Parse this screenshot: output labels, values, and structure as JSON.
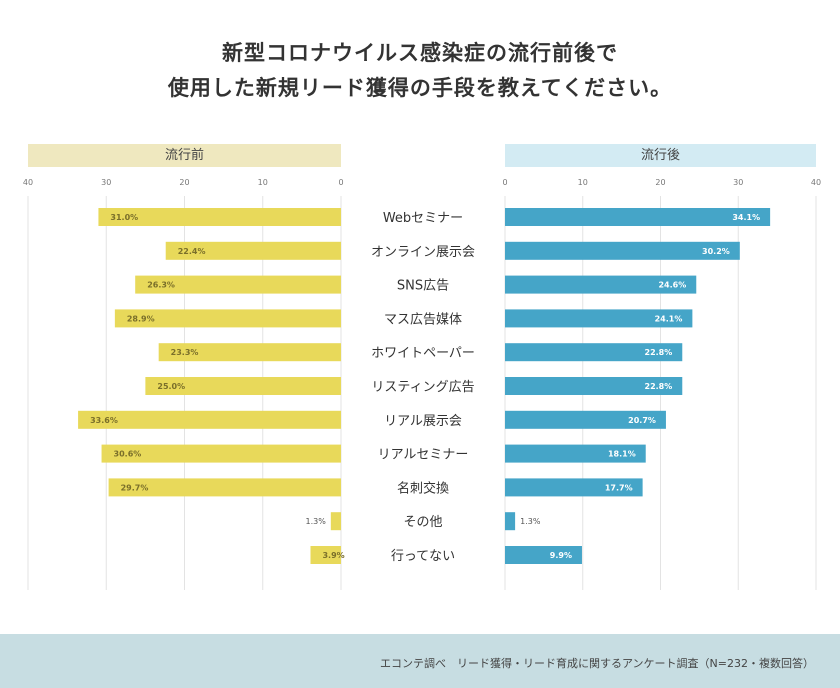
{
  "title_line1": "新型コロナウイルス感染症の流行前後で",
  "title_line2": "使用した新規リード獲得の手段を教えてください。",
  "colors": {
    "before": "#e8d95a",
    "after": "#45a5c8",
    "before_header": "#efe8bf",
    "after_header": "#d3ebf3",
    "footer": "#c7dde2"
  },
  "footer": {
    "source": "エコンテ調べ　リード獲得・リード育成に関するアンケート調査（N=232・複数回答）"
  },
  "chart_data": {
    "type": "bar",
    "categories": [
      "Webセミナー",
      "オンライン展示会",
      "SNS広告",
      "マス広告媒体",
      "ホワイトペーパー",
      "リスティング広告",
      "リアル展示会",
      "リアルセミナー",
      "名刺交換",
      "その他",
      "行ってない"
    ],
    "series": [
      {
        "name": "流行前",
        "values": [
          31.0,
          22.4,
          26.3,
          28.9,
          23.3,
          25.0,
          33.6,
          30.6,
          29.7,
          1.3,
          3.9
        ],
        "labels": [
          "31.0%",
          "22.4%",
          "26.3%",
          "28.9%",
          "23.3%",
          "25.0%",
          "33.6%",
          "30.6%",
          "29.7%",
          "1.3%",
          "3.9%"
        ]
      },
      {
        "name": "流行後",
        "values": [
          34.1,
          30.2,
          24.6,
          24.1,
          22.8,
          22.8,
          20.7,
          18.1,
          17.7,
          1.3,
          9.9
        ],
        "labels": [
          "34.1%",
          "30.2%",
          "24.6%",
          "24.1%",
          "22.8%",
          "22.8%",
          "20.7%",
          "18.1%",
          "17.7%",
          "1.3%",
          "9.9%"
        ]
      }
    ],
    "left_ticks": [
      "40",
      "30",
      "20",
      "10",
      "0"
    ],
    "right_ticks": [
      "0",
      "10",
      "20",
      "30",
      "40"
    ],
    "xlim": [
      0,
      40
    ],
    "grid": true
  }
}
